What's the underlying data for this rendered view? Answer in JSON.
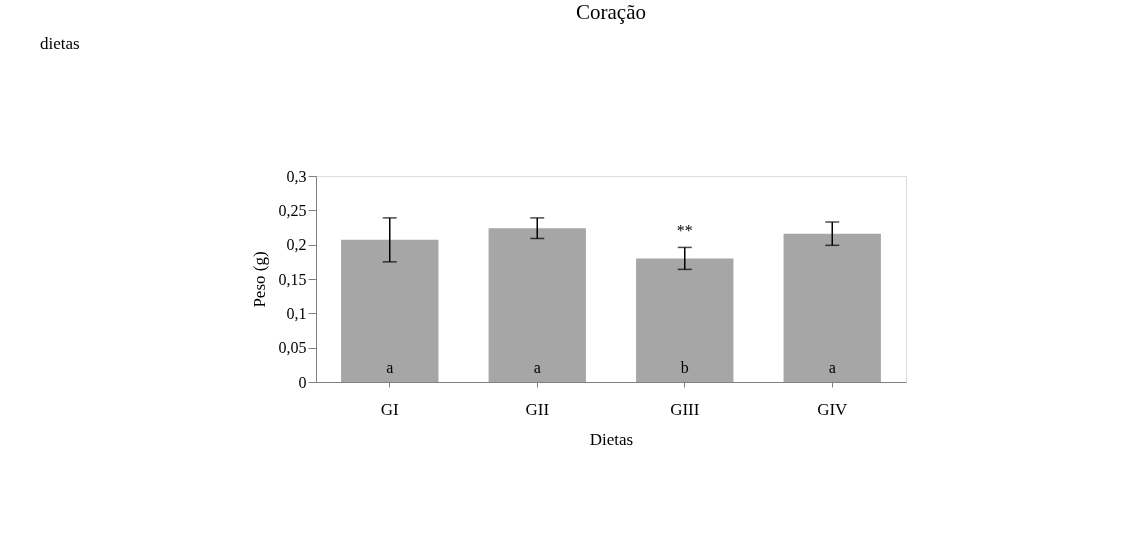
{
  "chart_data": {
    "type": "bar",
    "title": "Coração",
    "xlabel": "Dietas",
    "ylabel": "Peso (g)",
    "categories": [
      "GI",
      "GII",
      "GIII",
      "GIV"
    ],
    "values": [
      0.207,
      0.224,
      0.18,
      0.216
    ],
    "errors": [
      0.032,
      0.015,
      0.016,
      0.017
    ],
    "color": "#a6a6a6",
    "ylim": [
      0,
      0.3
    ],
    "yticks": [
      0,
      {
        "value": 0.05,
        "label": "0,05"
      },
      {
        "value": 0.1,
        "label": "0,1"
      },
      {
        "value": 0.15,
        "label": "0,15"
      },
      {
        "value": 0.2,
        "label": "0,2"
      },
      {
        "value": 0.25,
        "label": "0,25"
      },
      {
        "value": 0.3,
        "label": "0,3"
      }
    ],
    "grid": false,
    "annotations": [
      "dietas",
      "a",
      "a",
      "b",
      "a",
      {
        "text": "**",
        "x": "GIII",
        "y": 0.196
      }
    ]
  }
}
